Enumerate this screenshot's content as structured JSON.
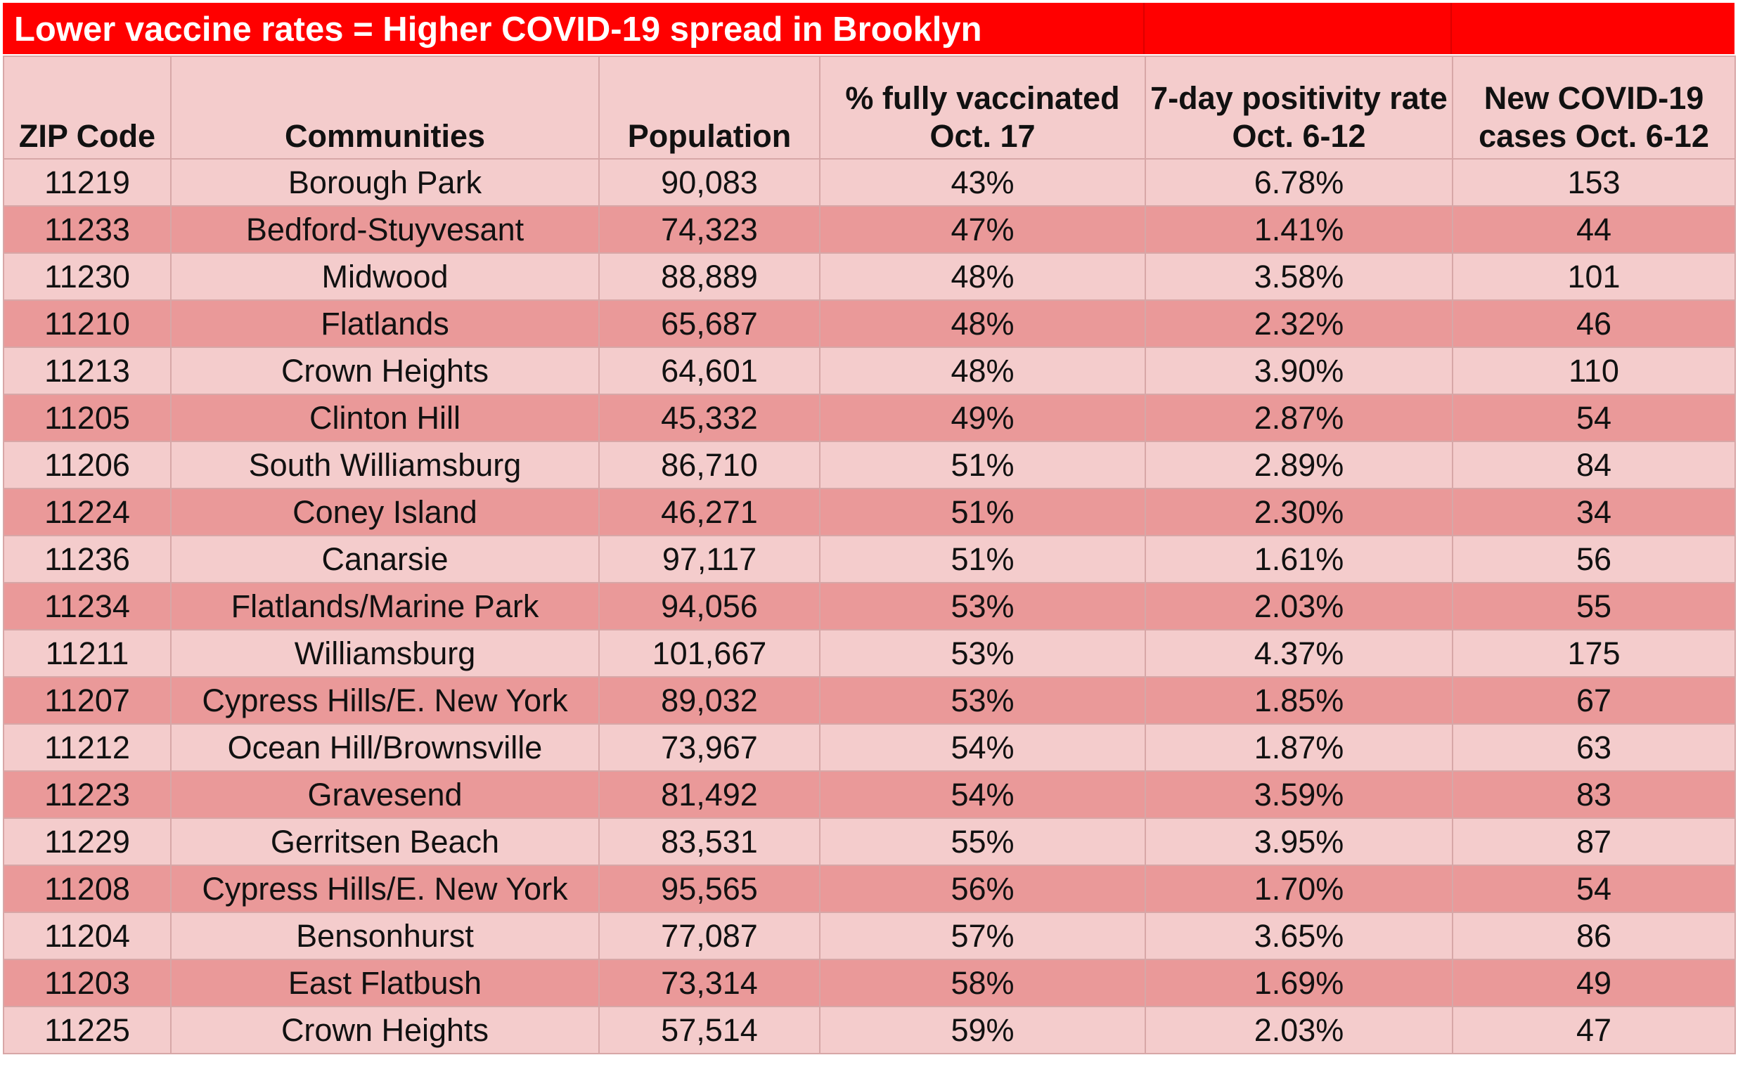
{
  "chart_data": {
    "type": "table",
    "title": "Lower vaccine rates = Higher COVID-19 spread in Brooklyn",
    "columns": [
      "ZIP Code",
      "Communities",
      "Population",
      "% fully vaccinated Oct. 17",
      "7-day positivity rate Oct. 6-12",
      "New COVID-19 cases Oct. 6-12"
    ],
    "rows": [
      [
        "11219",
        "Borough Park",
        "90,083",
        "43%",
        "6.78%",
        "153"
      ],
      [
        "11233",
        "Bedford-Stuyvesant",
        "74,323",
        "47%",
        "1.41%",
        "44"
      ],
      [
        "11230",
        "Midwood",
        "88,889",
        "48%",
        "3.58%",
        "101"
      ],
      [
        "11210",
        "Flatlands",
        "65,687",
        "48%",
        "2.32%",
        "46"
      ],
      [
        "11213",
        "Crown Heights",
        "64,601",
        "48%",
        "3.90%",
        "110"
      ],
      [
        "11205",
        "Clinton Hill",
        "45,332",
        "49%",
        "2.87%",
        "54"
      ],
      [
        "11206",
        "South Williamsburg",
        "86,710",
        "51%",
        "2.89%",
        "84"
      ],
      [
        "11224",
        "Coney Island",
        "46,271",
        "51%",
        "2.30%",
        "34"
      ],
      [
        "11236",
        "Canarsie",
        "97,117",
        "51%",
        "1.61%",
        "56"
      ],
      [
        "11234",
        "Flatlands/Marine Park",
        "94,056",
        "53%",
        "2.03%",
        "55"
      ],
      [
        "11211",
        "Williamsburg",
        "101,667",
        "53%",
        "4.37%",
        "175"
      ],
      [
        "11207",
        "Cypress Hills/E. New York",
        "89,032",
        "53%",
        "1.85%",
        "67"
      ],
      [
        "11212",
        "Ocean Hill/Brownsville",
        "73,967",
        "54%",
        "1.87%",
        "63"
      ],
      [
        "11223",
        "Gravesend",
        "81,492",
        "54%",
        "3.59%",
        "83"
      ],
      [
        "11229",
        "Gerritsen Beach",
        "83,531",
        "55%",
        "3.95%",
        "87"
      ],
      [
        "11208",
        "Cypress Hills/E. New York",
        "95,565",
        "56%",
        "1.70%",
        "54"
      ],
      [
        "11204",
        "Bensonhurst",
        "77,087",
        "57%",
        "3.65%",
        "86"
      ],
      [
        "11203",
        "East Flatbush",
        "73,314",
        "58%",
        "1.69%",
        "49"
      ],
      [
        "11225",
        "Crown Heights",
        "57,514",
        "59%",
        "2.03%",
        "47"
      ]
    ]
  },
  "colors": {
    "title_background": "#ff0000",
    "title_text": "#ffffff",
    "header_background": "#f4cccc",
    "row_light": "#f4cccc",
    "row_dark": "#ea9999",
    "grid": "#d7a7a7"
  }
}
